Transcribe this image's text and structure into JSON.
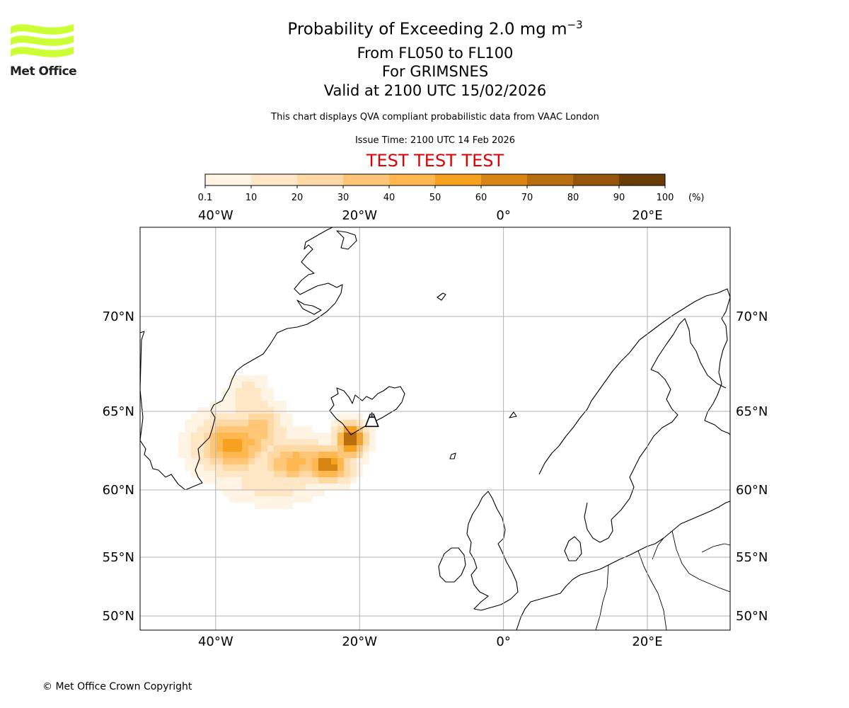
{
  "header": {
    "title_main": "Probability of Exceeding 2.0 mg m",
    "title_superscript": "−3",
    "level_range": "From FL050 to FL100",
    "volcano": "For GRIMSNES",
    "valid_time": "Valid at 2100 UTC 15/02/2026",
    "subtitle": "This chart displays QVA compliant probabilistic data from VAAC London",
    "issue_time": "Issue Time: 2100 UTC 14 Feb 2026",
    "test_banner": "TEST TEST TEST"
  },
  "logo": {
    "text": "Met Office",
    "color": "#ccff33"
  },
  "colorbar": {
    "ticks": [
      "0.1",
      "10",
      "20",
      "30",
      "40",
      "50",
      "60",
      "70",
      "80",
      "90",
      "100"
    ],
    "unit": "(%)",
    "colors": [
      "#fff4e3",
      "#ffe6c4",
      "#ffd9a3",
      "#ffc677",
      "#ffb84f",
      "#f8a020",
      "#d68512",
      "#b86e0d",
      "#94550a",
      "#6a3c08"
    ]
  },
  "map": {
    "lon_labels": [
      "40°W",
      "20°W",
      "0°",
      "20°E"
    ],
    "lat_labels": [
      "70°N",
      "65°N",
      "60°N",
      "55°N",
      "50°N"
    ],
    "volcano_marker_name": "Grimsnes",
    "volcano_lon": -17.3,
    "volcano_lat": 64.4
  },
  "footer": {
    "copyright": "© Met Office Crown Copyright"
  }
}
